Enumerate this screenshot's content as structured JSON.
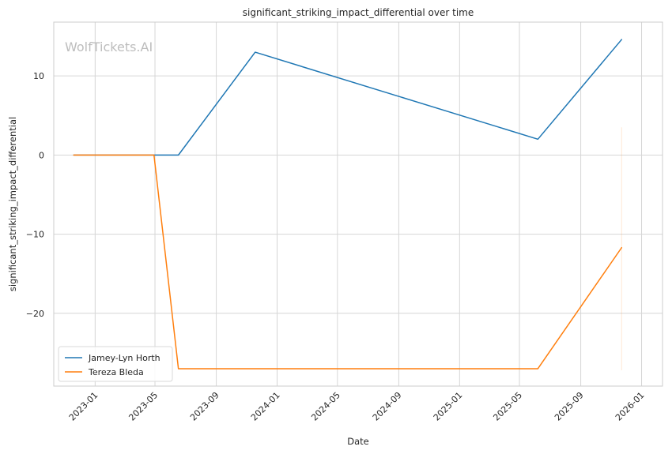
{
  "watermark": "WolfTickets.AI",
  "chart_data": {
    "type": "line",
    "title": "significant_striking_impact_differential over time",
    "xlabel": "Date",
    "ylabel": "significant_striking_impact_differential",
    "xlim": [
      "2022-10-10",
      "2026-02-12"
    ],
    "ylim": [
      -29.2,
      16.8
    ],
    "x_ticks": [
      "2023-01",
      "2023-05",
      "2023-09",
      "2024-01",
      "2024-05",
      "2024-09",
      "2025-01",
      "2025-05",
      "2025-09",
      "2026-01"
    ],
    "y_ticks": [
      10,
      0,
      -10,
      -20
    ],
    "y_tick_labels": [
      "10",
      "0",
      "−10",
      "−20"
    ],
    "grid": true,
    "legend_position": "bottom-left",
    "series": [
      {
        "name": "Jamey-Lyn Horth",
        "color": "#1f77b4",
        "points": [
          {
            "x": "2022-11-19",
            "y": 0
          },
          {
            "x": "2023-04-29",
            "y": 0
          },
          {
            "x": "2023-06-17",
            "y": 0
          },
          {
            "x": "2023-11-18",
            "y": 13
          },
          {
            "x": "2025-06-07",
            "y": 2
          },
          {
            "x": "2025-11-22",
            "y": 14.6
          }
        ]
      },
      {
        "name": "Tereza Bleda",
        "color": "#ff7f0e",
        "points": [
          {
            "x": "2022-11-19",
            "y": 0
          },
          {
            "x": "2023-04-29",
            "y": 0
          },
          {
            "x": "2023-06-17",
            "y": -27
          },
          {
            "x": "2025-06-07",
            "y": -27
          },
          {
            "x": "2025-11-22",
            "y": -11.7
          }
        ]
      }
    ],
    "error_bars": [
      {
        "series": "Tereza Bleda",
        "x": "2025-11-22",
        "low": -27.2,
        "high": 3.5,
        "color": "#ff7f0e",
        "opacity": 0.15
      }
    ]
  }
}
